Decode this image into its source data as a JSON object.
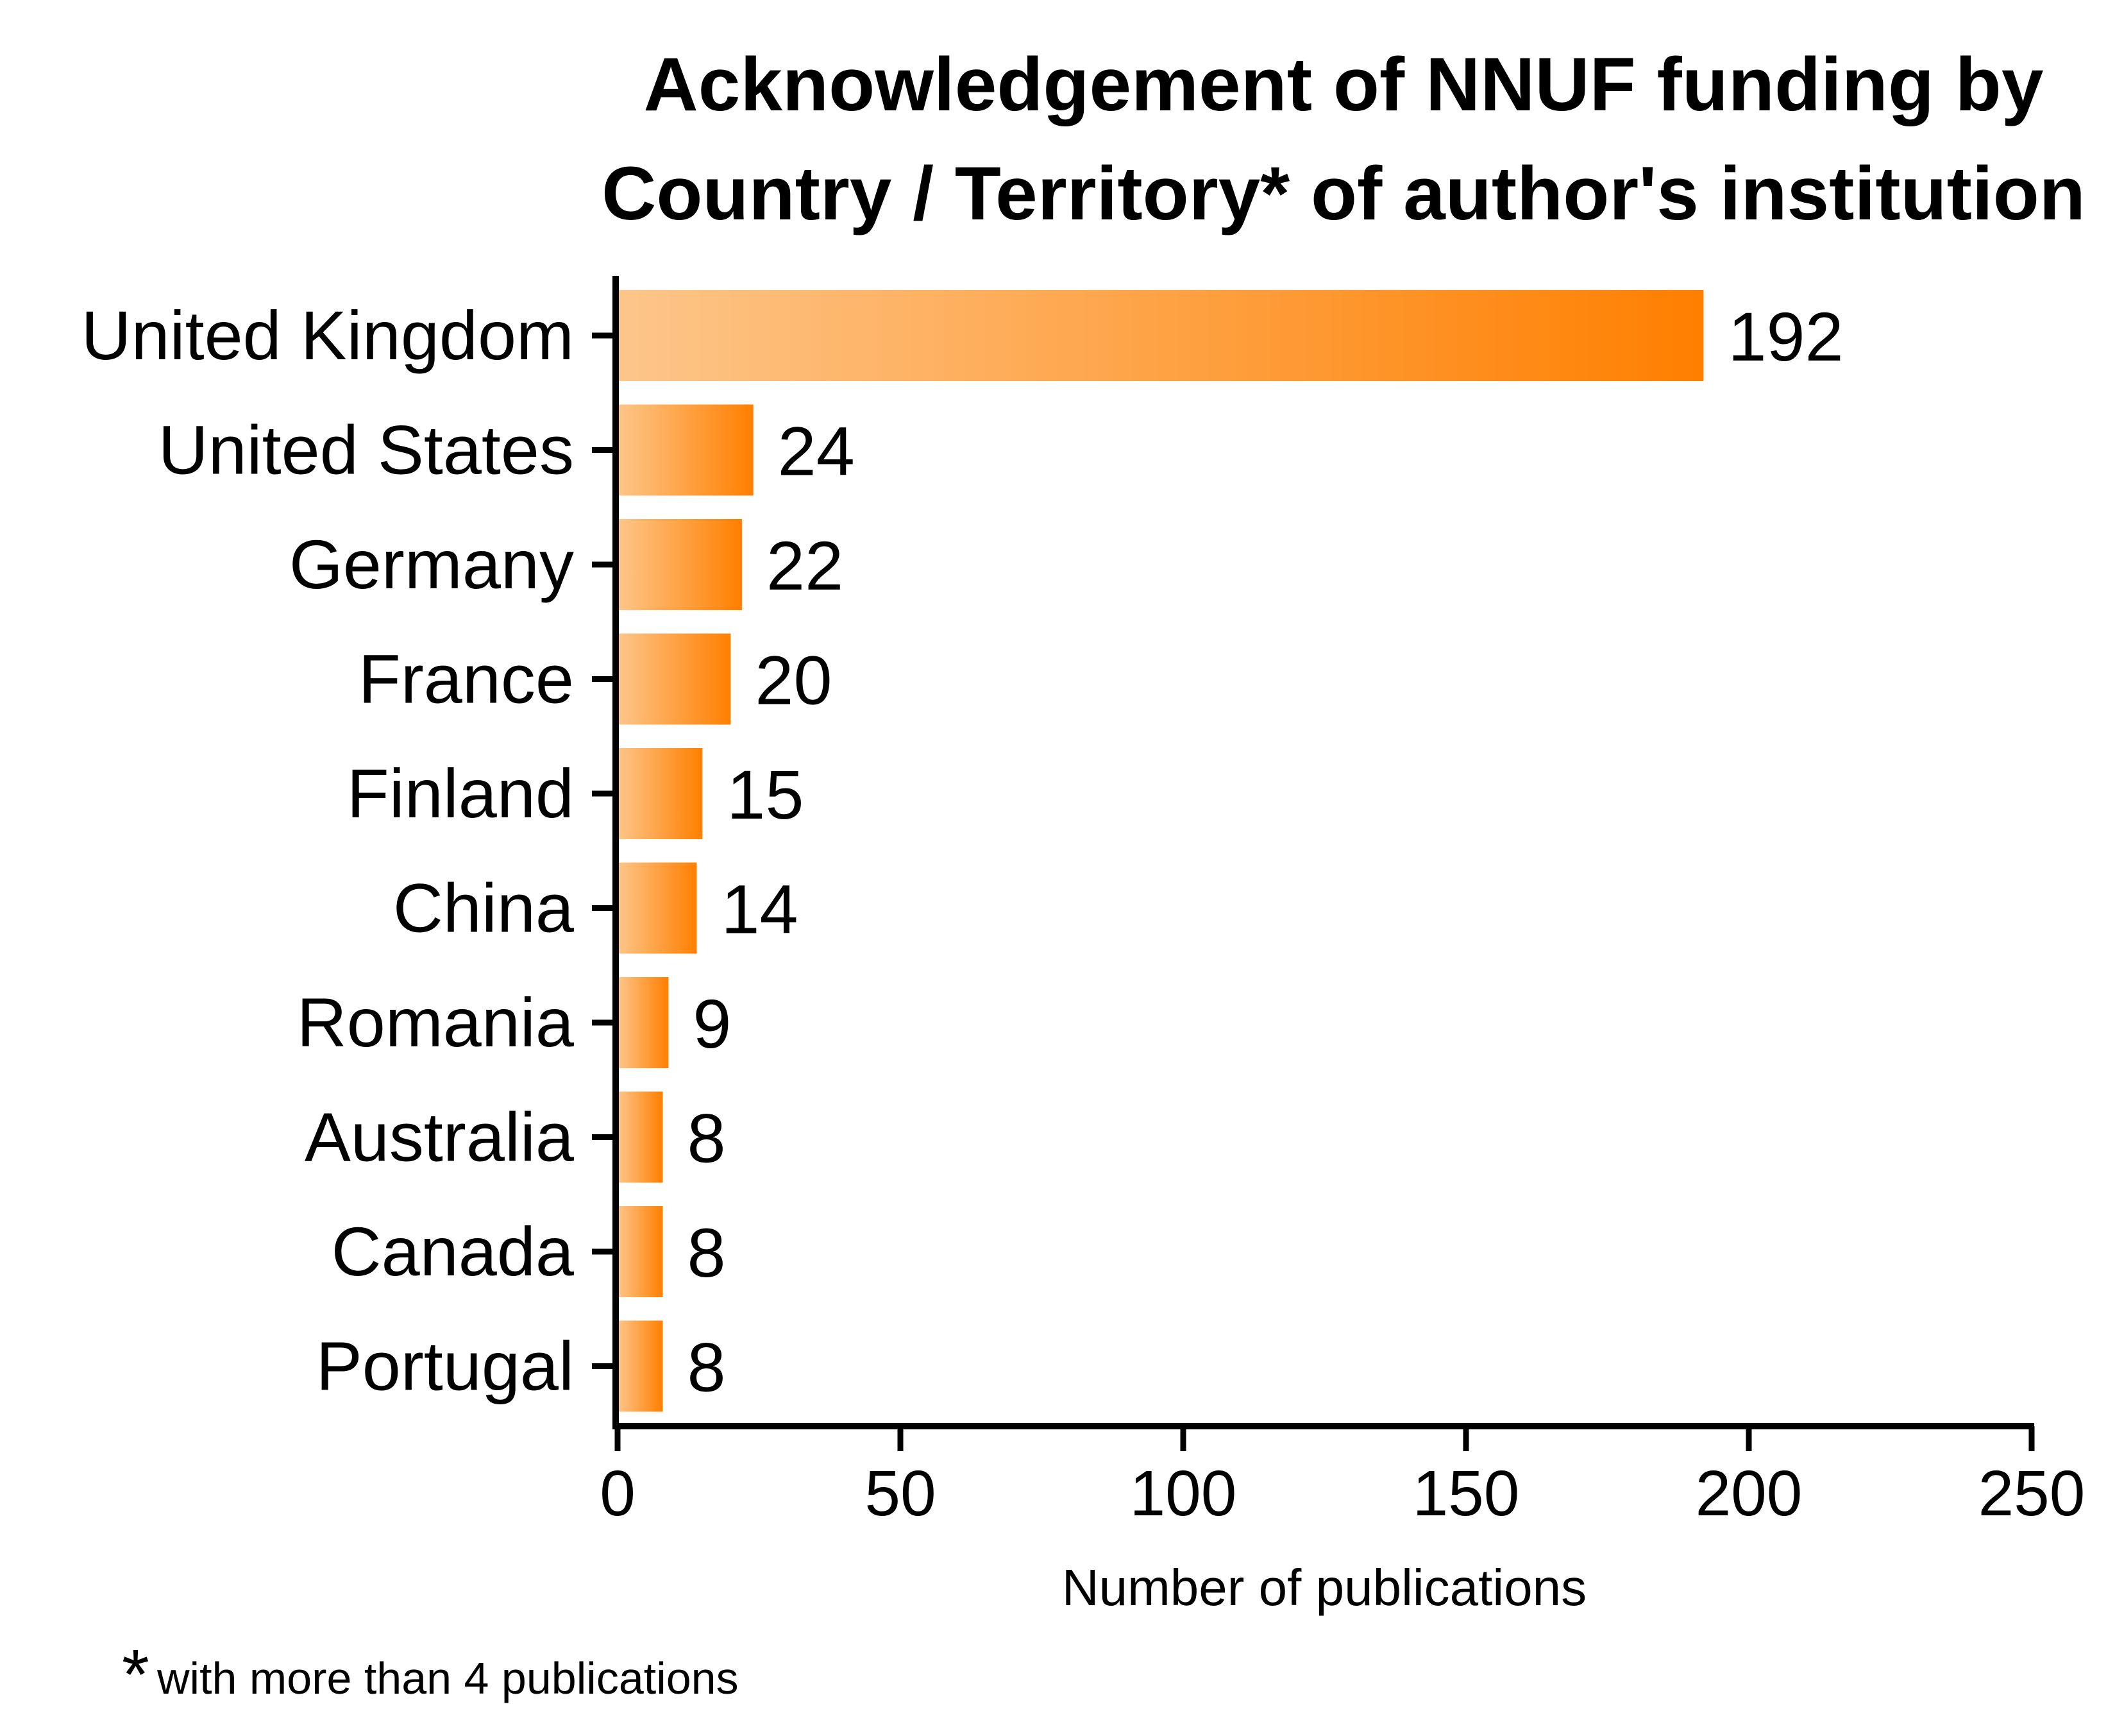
{
  "chart_data": {
    "type": "bar",
    "orientation": "horizontal",
    "title_lines": [
      "Acknowledgement of NNUF funding by",
      "Country / Territory* of author's institution"
    ],
    "categories": [
      "United Kingdom",
      "United States",
      "Germany",
      "France",
      "Finland",
      "China",
      "Romania",
      "Australia",
      "Canada",
      "Portugal"
    ],
    "values": [
      192,
      24,
      22,
      20,
      15,
      14,
      9,
      8,
      8,
      8
    ],
    "xlabel": "Number of publications",
    "ylabel": "",
    "xlim": [
      0,
      250
    ],
    "xticks": [
      0,
      50,
      100,
      150,
      200,
      250
    ],
    "grid": false,
    "colors": {
      "bar_start": "#fdc68a",
      "bar_end": "#ff7f00",
      "axis": "#000000"
    }
  },
  "footnote": {
    "symbol": "*",
    "text": "with more than 4 publications"
  }
}
